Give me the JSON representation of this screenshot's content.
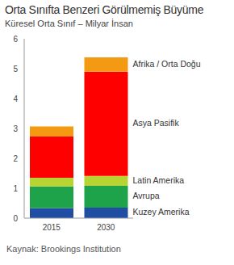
{
  "chart_data": {
    "type": "bar",
    "title": "Orta Sınıfta Benzeri Görülmemiş Büyüme",
    "subtitle": "Küresel Orta Sınıf – Milyar İnsan",
    "source": "Kaynak: Brookings Institution",
    "categories": [
      "2015",
      "2030"
    ],
    "stacked": true,
    "ylim": [
      0,
      6
    ],
    "yticks": [
      0,
      1,
      2,
      3,
      4,
      5,
      6
    ],
    "grid": false,
    "series": [
      {
        "name": "Kuzey Amerika",
        "color": "#1f4ea3",
        "values": [
          0.34,
          0.35
        ]
      },
      {
        "name": "Avrupa",
        "color": "#1ea34a",
        "values": [
          0.72,
          0.73
        ]
      },
      {
        "name": "Latin Amerika",
        "color": "#b8d432",
        "values": [
          0.29,
          0.33
        ]
      },
      {
        "name": "Asya Pasifik",
        "color": "#ff0000",
        "values": [
          1.38,
          3.49
        ]
      },
      {
        "name": "Afrika / Orta Doğu",
        "color": "#f39a12",
        "values": [
          0.34,
          0.48
        ]
      }
    ]
  }
}
